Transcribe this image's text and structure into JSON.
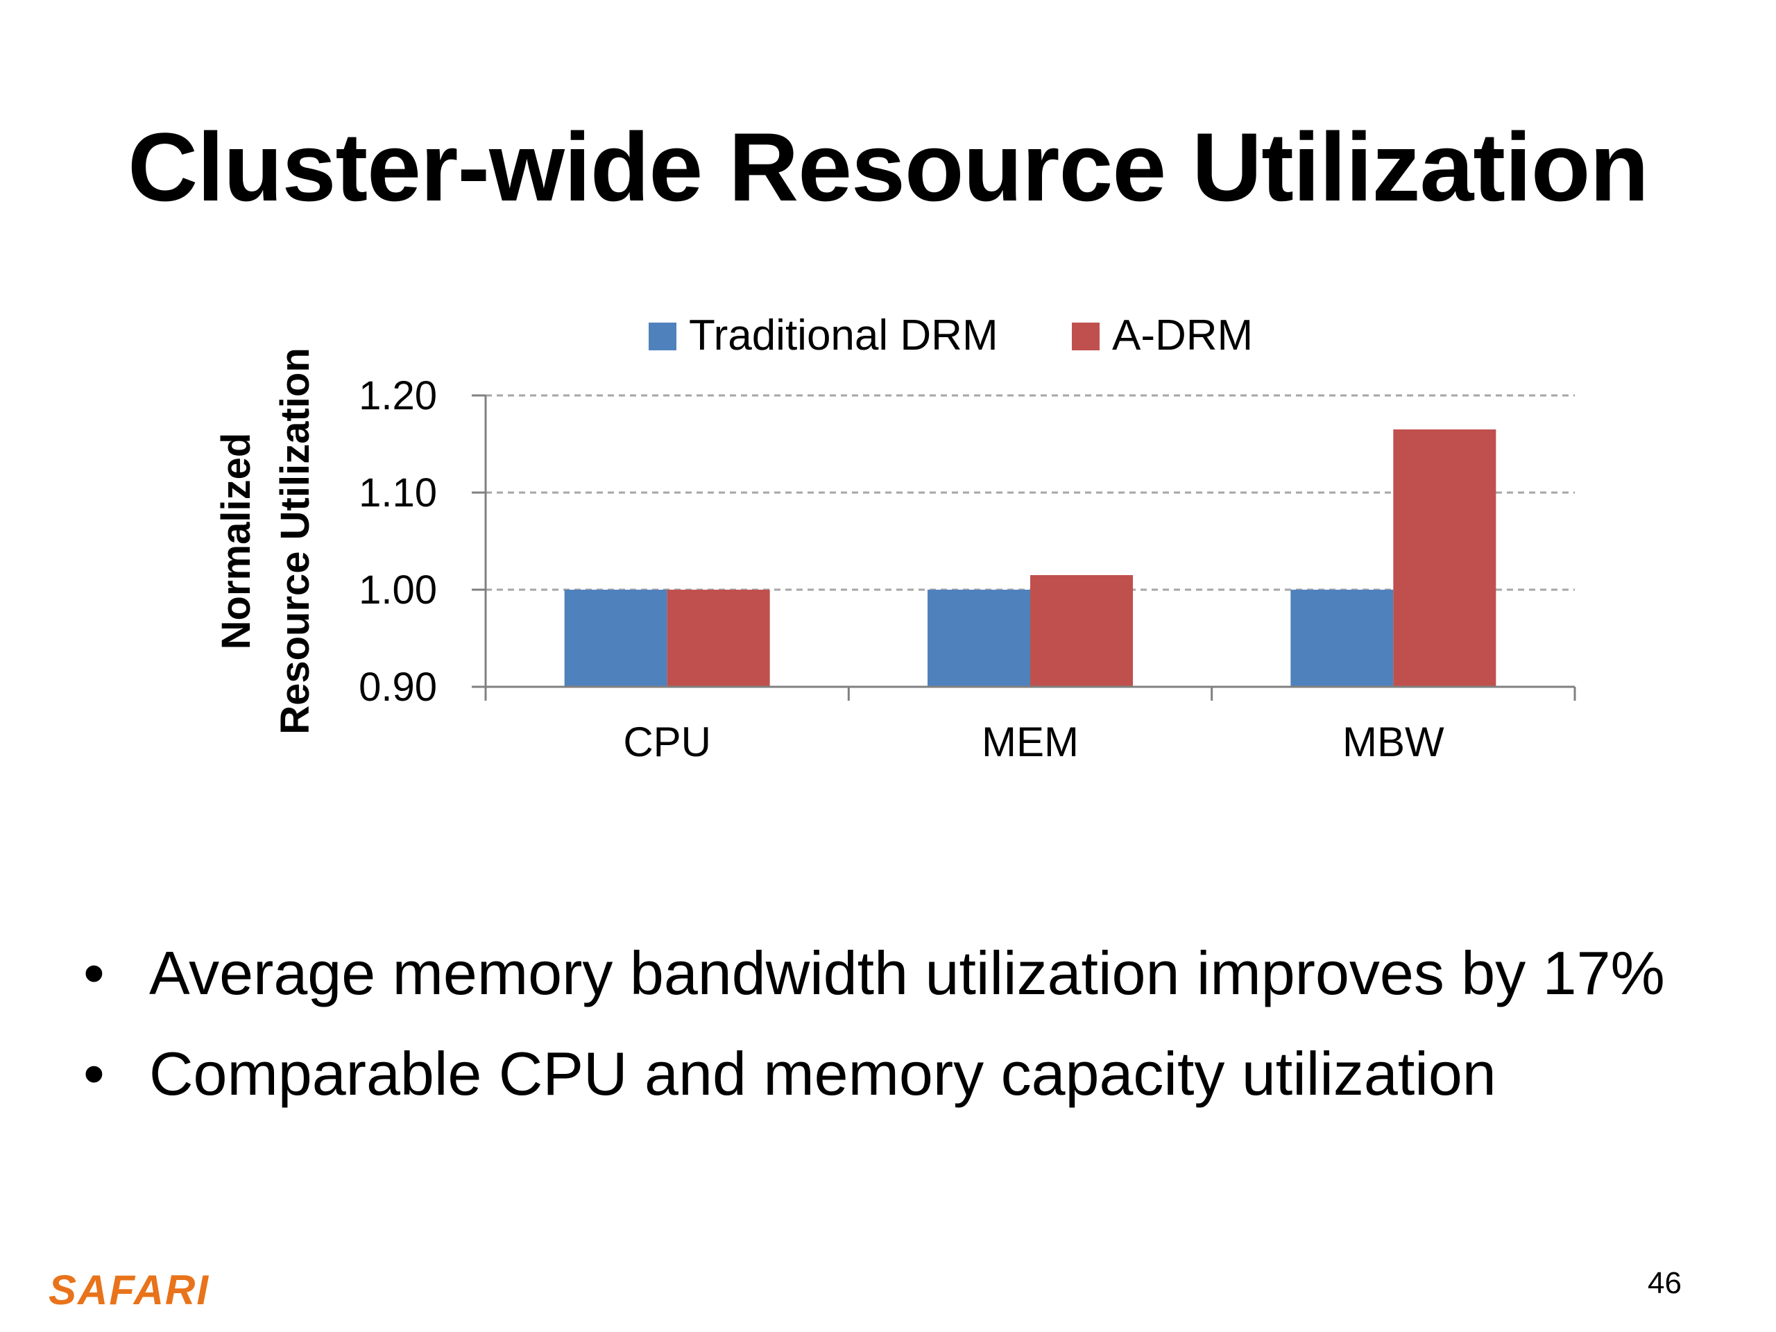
{
  "slide": {
    "title": "Cluster-wide Resource Utilization",
    "bullets": [
      "Average memory bandwidth utilization improves by 17%",
      "Comparable CPU and memory capacity utilization"
    ],
    "logo": "SAFARI",
    "page_number": "46"
  },
  "chart_data": {
    "type": "bar",
    "title": "",
    "xlabel": "",
    "ylabel": [
      "Normalized",
      "Resource Utilization"
    ],
    "categories": [
      "CPU",
      "MEM",
      "MBW"
    ],
    "series": [
      {
        "name": "Traditional DRM",
        "color": "#4f81bd",
        "values": [
          1.0,
          1.0,
          1.0
        ]
      },
      {
        "name": "A-DRM",
        "color": "#c0504d",
        "values": [
          1.0,
          1.015,
          1.165
        ]
      }
    ],
    "ylim": [
      0.9,
      1.2
    ],
    "yticks": [
      0.9,
      1.0,
      1.1,
      1.2
    ],
    "ytick_labels": [
      "0.90",
      "1.00",
      "1.10",
      "1.20"
    ],
    "grid": true,
    "legend_position": "top"
  }
}
